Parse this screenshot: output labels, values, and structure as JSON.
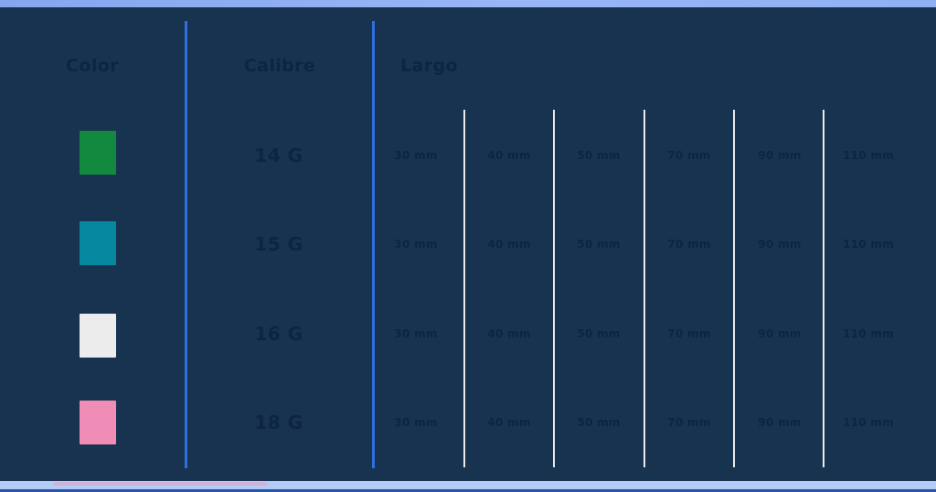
{
  "chart_data": {
    "type": "table",
    "title": "",
    "columns": [
      "Color",
      "Calibre",
      "Largo"
    ],
    "largo_unit": "mm",
    "largo_values_mm": [
      30,
      40,
      50,
      70,
      90,
      110
    ],
    "rows": [
      {
        "color": "green",
        "color_hex": "#12893E",
        "calibre": "14 G",
        "largo": [
          "30 mm",
          "40 mm",
          "50 mm",
          "70 mm",
          "90 mm",
          "110 mm"
        ]
      },
      {
        "color": "teal",
        "color_hex": "#0689A0",
        "calibre": "15 G",
        "largo": [
          "30 mm",
          "40 mm",
          "50 mm",
          "70 mm",
          "90 mm",
          "110 mm"
        ]
      },
      {
        "color": "white",
        "color_hex": "#ECECEC",
        "calibre": "16 G",
        "largo": [
          "30 mm",
          "40 mm",
          "50 mm",
          "70 mm",
          "90 mm",
          "110 mm"
        ]
      },
      {
        "color": "pink",
        "color_hex": "#EF8DB6",
        "calibre": "18 G",
        "largo": [
          "30 mm",
          "40 mm",
          "50 mm",
          "70 mm",
          "90 mm",
          "110 mm"
        ]
      }
    ]
  },
  "colors": {
    "background": "#183350",
    "accent_line_blue": "#2F6FE0",
    "divider_line_white": "#E9E9EC",
    "top_bar": "#8FAEF2",
    "bottom_bar": "#B4CBF5",
    "bottom_edge": "#2B55A8",
    "text": "#0D2443"
  }
}
